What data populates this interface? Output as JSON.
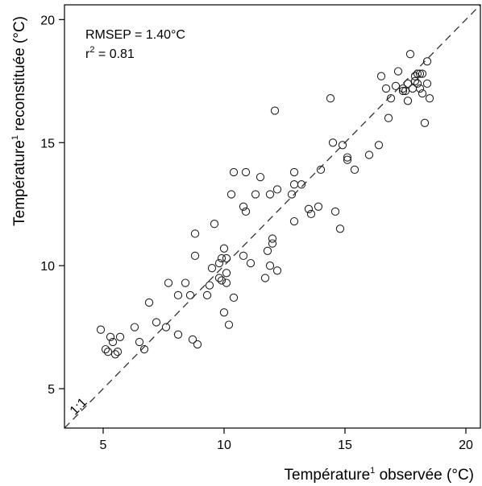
{
  "chart_data": {
    "type": "scatter",
    "xlabel_main": "Température",
    "xlabel_sup": "1",
    "xlabel_rest": " observée (°C)",
    "ylabel_main": "Température",
    "ylabel_sup": "1",
    "ylabel_rest": " reconstituée (°C)",
    "xlim": [
      3.4,
      20.6
    ],
    "ylim": [
      3.4,
      20.6
    ],
    "xticks": [
      "5",
      "10",
      "15",
      "20"
    ],
    "yticks": [
      "5",
      "10",
      "15",
      "20"
    ],
    "grid": false,
    "annotations": {
      "rmsep": "RMSEP = 1.40°C",
      "r2_prefix": "r",
      "r2_sup": "2",
      "r2_rest": " = 0.81"
    },
    "reference_line": {
      "label": "1:1",
      "style": "dashed"
    },
    "points": [
      [
        4.9,
        7.4
      ],
      [
        5.1,
        6.6
      ],
      [
        5.2,
        6.5
      ],
      [
        5.3,
        7.1
      ],
      [
        5.4,
        6.9
      ],
      [
        5.5,
        6.4
      ],
      [
        5.6,
        6.5
      ],
      [
        5.7,
        7.1
      ],
      [
        6.3,
        7.5
      ],
      [
        6.5,
        6.9
      ],
      [
        6.7,
        6.6
      ],
      [
        6.9,
        8.5
      ],
      [
        7.2,
        7.7
      ],
      [
        7.6,
        7.5
      ],
      [
        7.7,
        9.3
      ],
      [
        8.1,
        8.8
      ],
      [
        8.1,
        7.2
      ],
      [
        8.4,
        9.3
      ],
      [
        8.6,
        8.8
      ],
      [
        8.7,
        7.0
      ],
      [
        8.8,
        10.4
      ],
      [
        8.8,
        11.3
      ],
      [
        8.9,
        6.8
      ],
      [
        9.3,
        8.8
      ],
      [
        9.4,
        9.2
      ],
      [
        9.5,
        9.9
      ],
      [
        9.6,
        11.7
      ],
      [
        9.8,
        10.1
      ],
      [
        9.8,
        9.5
      ],
      [
        9.9,
        9.4
      ],
      [
        9.9,
        10.3
      ],
      [
        10.0,
        10.7
      ],
      [
        10.0,
        8.1
      ],
      [
        10.1,
        9.3
      ],
      [
        10.1,
        9.7
      ],
      [
        10.1,
        10.3
      ],
      [
        10.2,
        7.6
      ],
      [
        10.3,
        12.9
      ],
      [
        10.4,
        8.7
      ],
      [
        10.4,
        13.8
      ],
      [
        10.8,
        12.4
      ],
      [
        10.8,
        10.4
      ],
      [
        10.9,
        13.8
      ],
      [
        10.9,
        12.2
      ],
      [
        11.1,
        10.1
      ],
      [
        11.3,
        12.9
      ],
      [
        11.5,
        13.6
      ],
      [
        11.7,
        9.5
      ],
      [
        11.8,
        10.6
      ],
      [
        11.9,
        12.9
      ],
      [
        11.9,
        10.0
      ],
      [
        12.0,
        11.1
      ],
      [
        12.0,
        10.9
      ],
      [
        12.1,
        16.3
      ],
      [
        12.2,
        13.1
      ],
      [
        12.2,
        9.8
      ],
      [
        12.8,
        12.9
      ],
      [
        12.9,
        11.8
      ],
      [
        12.9,
        13.3
      ],
      [
        12.9,
        13.8
      ],
      [
        13.2,
        13.3
      ],
      [
        13.5,
        12.3
      ],
      [
        13.6,
        12.1
      ],
      [
        13.9,
        12.4
      ],
      [
        14.0,
        13.9
      ],
      [
        14.4,
        16.8
      ],
      [
        14.5,
        15.0
      ],
      [
        14.6,
        12.2
      ],
      [
        14.8,
        11.5
      ],
      [
        14.9,
        14.9
      ],
      [
        15.1,
        14.4
      ],
      [
        15.1,
        14.3
      ],
      [
        15.4,
        13.9
      ],
      [
        16.0,
        14.5
      ],
      [
        16.4,
        14.9
      ],
      [
        16.5,
        17.7
      ],
      [
        16.7,
        17.2
      ],
      [
        16.8,
        16.0
      ],
      [
        16.9,
        16.8
      ],
      [
        17.1,
        17.3
      ],
      [
        17.2,
        17.9
      ],
      [
        17.4,
        17.1
      ],
      [
        17.5,
        17.1
      ],
      [
        17.6,
        16.7
      ],
      [
        17.6,
        17.4
      ],
      [
        17.7,
        18.6
      ],
      [
        17.8,
        17.2
      ],
      [
        17.9,
        17.7
      ],
      [
        18.0,
        17.8
      ],
      [
        18.0,
        17.4
      ],
      [
        18.1,
        17.8
      ],
      [
        18.1,
        17.2
      ],
      [
        18.2,
        17.8
      ],
      [
        18.2,
        17.0
      ],
      [
        18.3,
        15.8
      ],
      [
        18.4,
        17.4
      ],
      [
        18.4,
        18.3
      ],
      [
        18.5,
        16.8
      ],
      [
        17.4,
        17.2
      ],
      [
        17.9,
        17.5
      ]
    ]
  }
}
